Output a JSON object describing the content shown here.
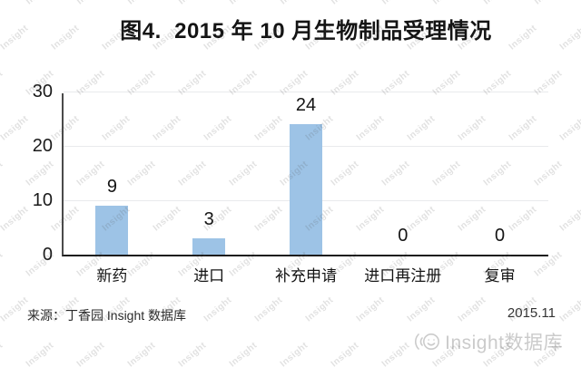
{
  "title": "图4.  2015 年 10 月生物制品受理情况",
  "chart_data": {
    "type": "bar",
    "categories": [
      "新药",
      "进口",
      "补充申请",
      "进口再注册",
      "复审"
    ],
    "values": [
      9,
      3,
      24,
      0,
      0
    ],
    "title": "图4.  2015 年 10 月生物制品受理情况",
    "xlabel": "",
    "ylabel": "",
    "ylim": [
      0,
      30
    ],
    "yticks": [
      0,
      10,
      20,
      30
    ],
    "bar_color": "#9DC3E6",
    "grid": true,
    "legend": false
  },
  "footer": {
    "source": "来源：丁香园 Insight 数据库",
    "date": "2015.11",
    "logo_text": "Insight数据库"
  },
  "watermark": {
    "text": "Insight"
  }
}
